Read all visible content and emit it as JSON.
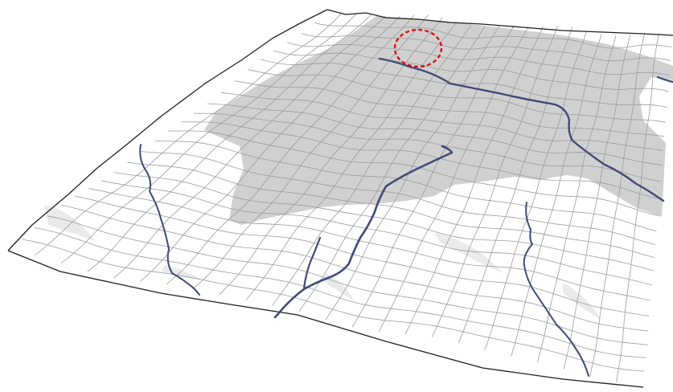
{
  "scene": {
    "background_color": "#ffffff",
    "grid_line_color": "#9a9a9a",
    "outline_color": "#1e1e1e",
    "shaded_region_color": "#c4c4c4",
    "shaded_region_opacity": 0.8,
    "river_color": "#3f4a78",
    "marker_color": "#dd1111",
    "grid_rows": 24,
    "grid_columns": 24
  },
  "features": {
    "terrain": "terrain-mesh",
    "region": "shaded-region",
    "streams": [
      "river-north",
      "river-central",
      "river-central-branch",
      "river-west",
      "river-southeast",
      "river-east-edge"
    ],
    "marker": "highlight-circle"
  }
}
